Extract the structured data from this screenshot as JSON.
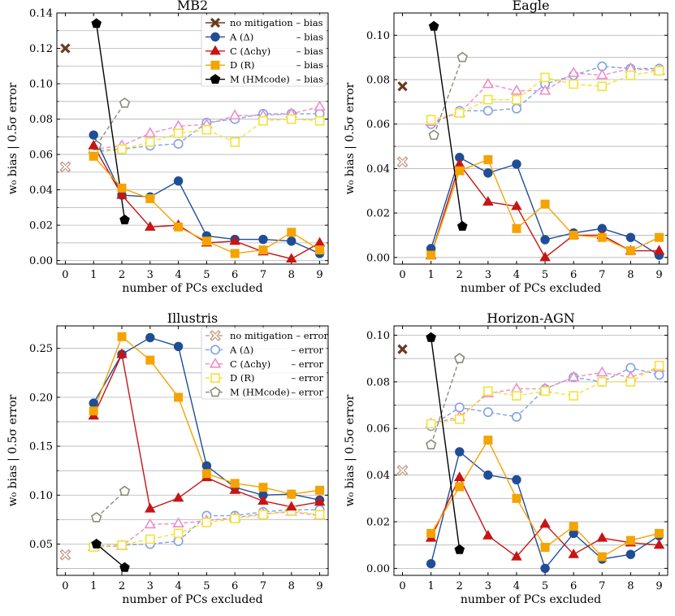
{
  "figure": {
    "shared_xlabel": "number of PCs excluded",
    "shared_ylabel": "w₀ bias   |   0.5σ error"
  },
  "legend_bias": [
    {
      "name": "no mitigation – bias",
      "key": "none"
    },
    {
      "name": "A (Δ)",
      "suffix": "– bias",
      "key": "A"
    },
    {
      "name": "C (Δchy)",
      "suffix": "– bias",
      "key": "C"
    },
    {
      "name": "D (R)",
      "suffix": "– bias",
      "key": "D"
    },
    {
      "name": "M (HMcode)",
      "suffix": "– bias",
      "key": "M"
    }
  ],
  "legend_error": [
    {
      "name": "no mitigation – error",
      "key": "none"
    },
    {
      "name": "A (Δ)",
      "suffix": "– error",
      "key": "A"
    },
    {
      "name": "C (Δchy)",
      "suffix": "– error",
      "key": "C"
    },
    {
      "name": "D (R)",
      "suffix": "– error",
      "key": "D"
    },
    {
      "name": "M (HMcode)",
      "suffix": "– error",
      "key": "M"
    }
  ],
  "colors": {
    "none_bias": "#6b3a1f",
    "none_error": "#c9a08e",
    "A_bias": "#1f4e96",
    "A_error": "#7ea3e0",
    "C_bias": "#c81414",
    "C_error": "#f08cc8",
    "D_bias": "#f5a300",
    "D_error": "#f2e23a",
    "M_bias": "#000000",
    "M_error": "#8a8a7a"
  },
  "chart_data": [
    {
      "type": "line",
      "title": "MB2",
      "xlabel": "number of PCs excluded",
      "ylabel": "w₀ bias | 0.5σ error",
      "xlim": [
        -0.3,
        9.3
      ],
      "ylim": [
        -0.002,
        0.14
      ],
      "yticks": [
        0.0,
        0.02,
        0.04,
        0.06,
        0.08,
        0.1,
        0.12,
        0.14
      ],
      "ytick_labels": [
        "0.00",
        "0.02",
        "0.04",
        "0.06",
        "0.08",
        "0.10",
        "0.12",
        "0.14"
      ],
      "xticks": [
        0,
        1,
        2,
        3,
        4,
        5,
        6,
        7,
        8,
        9
      ],
      "legend": "bias",
      "no_mitigation": {
        "bias": 0.12,
        "error": 0.053
      },
      "series": [
        {
          "key": "A",
          "x": [
            1,
            2,
            3,
            4,
            5,
            6,
            7,
            8,
            9
          ],
          "bias": [
            0.071,
            0.037,
            0.036,
            0.045,
            0.014,
            0.012,
            0.012,
            0.011,
            0.004
          ],
          "error": [
            0.062,
            0.063,
            0.065,
            0.066,
            0.078,
            0.08,
            0.083,
            0.083,
            0.083
          ]
        },
        {
          "key": "C",
          "x": [
            1,
            2,
            3,
            4,
            5,
            6,
            7,
            8,
            9
          ],
          "bias": [
            0.065,
            0.037,
            0.019,
            0.02,
            0.01,
            0.011,
            0.005,
            0.001,
            0.01
          ],
          "error": [
            0.063,
            0.065,
            0.072,
            0.076,
            0.077,
            0.082,
            0.082,
            0.083,
            0.087
          ]
        },
        {
          "key": "D",
          "x": [
            1,
            2,
            3,
            4,
            5,
            6,
            7,
            8,
            9
          ],
          "bias": [
            0.059,
            0.041,
            0.035,
            0.019,
            0.011,
            0.004,
            0.006,
            0.016,
            0.006
          ],
          "error": [
            0.061,
            0.063,
            0.067,
            0.072,
            0.074,
            0.067,
            0.079,
            0.08,
            0.079
          ]
        },
        {
          "key": "M",
          "x": [
            1.1,
            2.1
          ],
          "bias": [
            0.134,
            0.023
          ],
          "error": [
            0.065,
            0.089
          ]
        }
      ]
    },
    {
      "type": "line",
      "title": "Eagle",
      "xlabel": "number of PCs excluded",
      "ylabel": "w₀ bias | 0.5σ error",
      "xlim": [
        -0.3,
        9.3
      ],
      "ylim": [
        -0.003,
        0.11
      ],
      "yticks": [
        0.0,
        0.02,
        0.04,
        0.06,
        0.08,
        0.1
      ],
      "ytick_labels": [
        "0.00",
        "0.02",
        "0.04",
        "0.06",
        "0.08",
        "0.10"
      ],
      "xticks": [
        0,
        1,
        2,
        3,
        4,
        5,
        6,
        7,
        8,
        9
      ],
      "legend": "none",
      "no_mitigation": {
        "bias": 0.077,
        "error": 0.043
      },
      "series": [
        {
          "key": "A",
          "x": [
            1,
            2,
            3,
            4,
            5,
            6,
            7,
            8,
            9
          ],
          "bias": [
            0.004,
            0.045,
            0.038,
            0.042,
            0.008,
            0.011,
            0.013,
            0.009,
            0.001
          ],
          "error": [
            0.06,
            0.066,
            0.066,
            0.067,
            0.078,
            0.082,
            0.086,
            0.085,
            0.085
          ]
        },
        {
          "key": "C",
          "x": [
            1,
            2,
            3,
            4,
            5,
            6,
            7,
            8,
            9
          ],
          "bias": [
            0.001,
            0.042,
            0.025,
            0.023,
            0.0,
            0.01,
            0.01,
            0.003,
            0.003
          ],
          "error": [
            0.061,
            0.065,
            0.078,
            0.075,
            0.075,
            0.083,
            0.082,
            0.085,
            0.084
          ]
        },
        {
          "key": "D",
          "x": [
            1,
            2,
            3,
            4,
            5,
            6,
            7,
            8,
            9
          ],
          "bias": [
            0.001,
            0.039,
            0.044,
            0.013,
            0.024,
            0.01,
            0.009,
            0.003,
            0.009
          ],
          "error": [
            0.062,
            0.065,
            0.071,
            0.071,
            0.081,
            0.078,
            0.077,
            0.082,
            0.084
          ]
        },
        {
          "key": "M",
          "x": [
            1.1,
            2.1
          ],
          "bias": [
            0.104,
            0.014
          ],
          "error": [
            0.055,
            0.09
          ]
        }
      ]
    },
    {
      "type": "line",
      "title": "Illustris",
      "xlabel": "number of PCs excluded",
      "ylabel": "w₀ bias | 0.5σ error",
      "xlim": [
        -0.3,
        9.3
      ],
      "ylim": [
        0.018,
        0.273
      ],
      "yticks": [
        0.05,
        0.1,
        0.15,
        0.2,
        0.25
      ],
      "ytick_labels": [
        "0.05",
        "0.10",
        "0.15",
        "0.20",
        "0.25"
      ],
      "xticks": [
        0,
        1,
        2,
        3,
        4,
        5,
        6,
        7,
        8,
        9
      ],
      "legend": "error",
      "no_mitigation": {
        "bias": null,
        "error": 0.039
      },
      "series": [
        {
          "key": "A",
          "x": [
            1,
            2,
            3,
            4,
            5,
            6,
            7,
            8,
            9
          ],
          "bias": [
            0.194,
            0.244,
            0.261,
            0.252,
            0.13,
            0.108,
            0.1,
            0.101,
            0.095
          ],
          "error": [
            0.048,
            0.049,
            0.05,
            0.053,
            0.079,
            0.079,
            0.083,
            0.085,
            0.085
          ]
        },
        {
          "key": "C",
          "x": [
            1,
            2,
            3,
            4,
            5,
            6,
            7,
            8,
            9
          ],
          "bias": [
            0.181,
            0.244,
            0.086,
            0.097,
            0.118,
            0.105,
            0.094,
            0.088,
            0.093
          ],
          "error": [
            0.047,
            0.048,
            0.07,
            0.071,
            0.074,
            0.077,
            0.081,
            0.083,
            0.079
          ]
        },
        {
          "key": "D",
          "x": [
            1,
            2,
            3,
            4,
            5,
            6,
            7,
            8,
            9
          ],
          "bias": [
            0.186,
            0.262,
            0.238,
            0.2,
            0.122,
            0.112,
            0.108,
            0.101,
            0.105
          ],
          "error": [
            0.047,
            0.049,
            0.055,
            0.061,
            0.072,
            0.076,
            0.08,
            0.084,
            0.08
          ]
        },
        {
          "key": "M",
          "x": [
            1.1,
            2.1
          ],
          "bias": [
            0.05,
            0.026
          ],
          "error": [
            0.077,
            0.104
          ]
        }
      ]
    },
    {
      "type": "line",
      "title": "Horizon-AGN",
      "xlabel": "number of PCs excluded",
      "ylabel": "w₀ bias | 0.5σ error",
      "xlim": [
        -0.3,
        9.3
      ],
      "ylim": [
        -0.003,
        0.104
      ],
      "yticks": [
        0.0,
        0.02,
        0.04,
        0.06,
        0.08,
        0.1
      ],
      "ytick_labels": [
        "0.00",
        "0.02",
        "0.04",
        "0.06",
        "0.08",
        "0.10"
      ],
      "xticks": [
        0,
        1,
        2,
        3,
        4,
        5,
        6,
        7,
        8,
        9
      ],
      "legend": "none",
      "no_mitigation": {
        "bias": 0.094,
        "error": 0.042
      },
      "series": [
        {
          "key": "A",
          "x": [
            1,
            2,
            3,
            4,
            5,
            6,
            7,
            8,
            9
          ],
          "bias": [
            0.002,
            0.05,
            0.04,
            0.038,
            0.0,
            0.015,
            0.004,
            0.006,
            0.014
          ],
          "error": [
            0.061,
            0.069,
            0.067,
            0.065,
            0.077,
            0.082,
            0.08,
            0.086,
            0.083
          ]
        },
        {
          "key": "C",
          "x": [
            1,
            2,
            3,
            4,
            5,
            6,
            7,
            8,
            9
          ],
          "bias": [
            0.013,
            0.039,
            0.014,
            0.005,
            0.019,
            0.006,
            0.013,
            0.011,
            0.01
          ],
          "error": [
            0.062,
            0.065,
            0.075,
            0.077,
            0.077,
            0.082,
            0.084,
            0.082,
            0.086
          ]
        },
        {
          "key": "D",
          "x": [
            1,
            2,
            3,
            4,
            5,
            6,
            7,
            8,
            9
          ],
          "bias": [
            0.015,
            0.035,
            0.055,
            0.03,
            0.009,
            0.018,
            0.005,
            0.012,
            0.015
          ],
          "error": [
            0.062,
            0.064,
            0.076,
            0.074,
            0.076,
            0.074,
            0.08,
            0.08,
            0.087
          ]
        },
        {
          "key": "M",
          "x": [
            1.0,
            2.0
          ],
          "bias": [
            0.099,
            0.008
          ],
          "error": [
            0.053,
            0.09
          ]
        }
      ]
    }
  ]
}
